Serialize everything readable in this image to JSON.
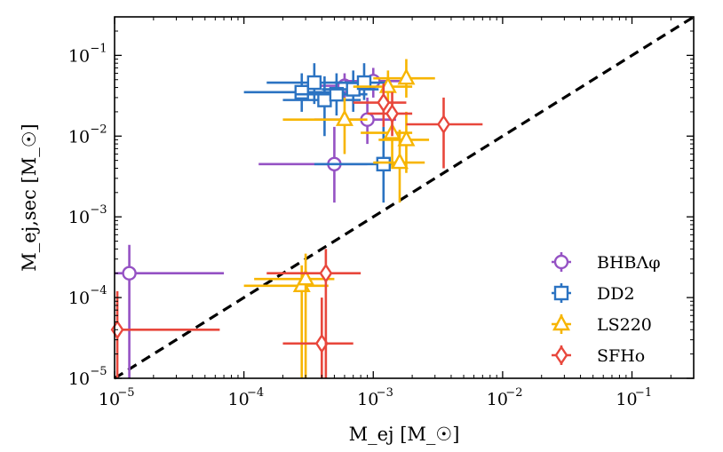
{
  "chart_data": {
    "type": "scatter",
    "xscale": "log",
    "yscale": "log",
    "xlim": [
      1e-05,
      0.3
    ],
    "ylim": [
      1e-05,
      0.3
    ],
    "xlabel": "M_ej [M_☉]",
    "ylabel": "M_ej,sec [M_☉]",
    "x_ticks": [
      {
        "value": 1e-05,
        "base": "10",
        "exp": "−5"
      },
      {
        "value": 0.0001,
        "base": "10",
        "exp": "−4"
      },
      {
        "value": 0.001,
        "base": "10",
        "exp": "−3"
      },
      {
        "value": 0.01,
        "base": "10",
        "exp": "−2"
      },
      {
        "value": 0.1,
        "base": "10",
        "exp": "−1"
      }
    ],
    "y_ticks": [
      {
        "value": 1e-05,
        "base": "10",
        "exp": "−5"
      },
      {
        "value": 0.0001,
        "base": "10",
        "exp": "−4"
      },
      {
        "value": 0.001,
        "base": "10",
        "exp": "−3"
      },
      {
        "value": 0.01,
        "base": "10",
        "exp": "−2"
      },
      {
        "value": 0.1,
        "base": "10",
        "exp": "−1"
      }
    ],
    "reference_line": {
      "label": "y = x",
      "style": "dashed",
      "color": "#000000"
    },
    "legend_position": "lower-right",
    "series": [
      {
        "name": "BHBΛφ",
        "color": "#9552c4",
        "marker": "circle",
        "points": [
          {
            "x": 1.3e-05,
            "y": 0.0002,
            "xerr": [
              1e-05,
              7e-05
            ],
            "yerr": [
              1e-05,
              0.00045
            ]
          },
          {
            "x": 0.0005,
            "y": 0.0045,
            "xerr": [
              0.00013,
              0.0009
            ],
            "yerr": [
              0.0015,
              0.013
            ]
          },
          {
            "x": 0.0009,
            "y": 0.016,
            "xerr": [
              0.00035,
              0.0015
            ],
            "yerr": [
              0.008,
              0.03
            ]
          },
          {
            "x": 0.0006,
            "y": 0.042,
            "xerr": [
              0.0003,
              0.001
            ],
            "yerr": [
              0.028,
              0.06
            ]
          },
          {
            "x": 0.001,
            "y": 0.048,
            "xerr": [
              0.0006,
              0.0016
            ],
            "yerr": [
              0.03,
              0.07
            ]
          }
        ]
      },
      {
        "name": "DD2",
        "color": "#2b73c2",
        "marker": "square",
        "points": [
          {
            "x": 0.00028,
            "y": 0.035,
            "xerr": [
              0.0001,
              0.0006
            ],
            "yerr": [
              0.02,
              0.06
            ]
          },
          {
            "x": 0.00035,
            "y": 0.046,
            "xerr": [
              0.00015,
              0.0007
            ],
            "yerr": [
              0.025,
              0.08
            ]
          },
          {
            "x": 0.00042,
            "y": 0.028,
            "xerr": [
              0.0002,
              0.0008
            ],
            "yerr": [
              0.01,
              0.055
            ]
          },
          {
            "x": 0.00052,
            "y": 0.033,
            "xerr": [
              0.00025,
              0.0009
            ],
            "yerr": [
              0.018,
              0.06
            ]
          },
          {
            "x": 0.0007,
            "y": 0.038,
            "xerr": [
              0.0004,
              0.0011
            ],
            "yerr": [
              0.02,
              0.065
            ]
          },
          {
            "x": 0.00085,
            "y": 0.046,
            "xerr": [
              0.0005,
              0.0013
            ],
            "yerr": [
              0.028,
              0.08
            ]
          },
          {
            "x": 0.0012,
            "y": 0.0045,
            "xerr": [
              0.00035,
              0.0016
            ],
            "yerr": [
              0.0015,
              0.013
            ]
          }
        ]
      },
      {
        "name": "LS220",
        "color": "#f7b500",
        "marker": "triangle",
        "points": [
          {
            "x": 0.00028,
            "y": 0.00014,
            "xerr": [
              0.0001,
              0.00045
            ],
            "yerr": [
              1e-05,
              0.00025
            ]
          },
          {
            "x": 0.0003,
            "y": 0.00017,
            "xerr": [
              0.00012,
              0.0005
            ],
            "yerr": [
              1e-05,
              0.00035
            ]
          },
          {
            "x": 0.0006,
            "y": 0.016,
            "xerr": [
              0.0002,
              0.0009
            ],
            "yerr": [
              0.006,
              0.03
            ]
          },
          {
            "x": 0.0013,
            "y": 0.041,
            "xerr": [
              0.0007,
              0.002
            ],
            "yerr": [
              0.025,
              0.065
            ]
          },
          {
            "x": 0.0014,
            "y": 0.011,
            "xerr": [
              0.0008,
              0.002
            ],
            "yerr": [
              0.004,
              0.025
            ]
          },
          {
            "x": 0.0016,
            "y": 0.0047,
            "xerr": [
              0.001,
              0.0025
            ],
            "yerr": [
              0.0015,
              0.012
            ]
          },
          {
            "x": 0.0018,
            "y": 0.009,
            "xerr": [
              0.0011,
              0.0027
            ],
            "yerr": [
              0.0035,
              0.02
            ]
          },
          {
            "x": 0.0018,
            "y": 0.052,
            "xerr": [
              0.001,
              0.003
            ],
            "yerr": [
              0.03,
              0.09
            ]
          }
        ]
      },
      {
        "name": "SFHo",
        "color": "#e8473c",
        "marker": "diamond",
        "points": [
          {
            "x": 1.05e-05,
            "y": 4e-05,
            "xerr": [
              1e-05,
              6.5e-05
            ],
            "yerr": [
              1e-05,
              0.00012
            ]
          },
          {
            "x": 0.0004,
            "y": 2.7e-05,
            "xerr": [
              0.0002,
              0.0007
            ],
            "yerr": [
              1e-05,
              0.0001
            ]
          },
          {
            "x": 0.00043,
            "y": 0.0002,
            "xerr": [
              0.00015,
              0.0008
            ],
            "yerr": [
              1e-05,
              0.0004
            ]
          },
          {
            "x": 0.0012,
            "y": 0.026,
            "xerr": [
              0.0007,
              0.0018
            ],
            "yerr": [
              0.013,
              0.045
            ]
          },
          {
            "x": 0.0014,
            "y": 0.019,
            "xerr": [
              0.0009,
              0.002
            ],
            "yerr": [
              0.01,
              0.035
            ]
          },
          {
            "x": 0.0035,
            "y": 0.014,
            "xerr": [
              0.0018,
              0.007
            ],
            "yerr": [
              0.004,
              0.03
            ]
          }
        ]
      }
    ]
  }
}
